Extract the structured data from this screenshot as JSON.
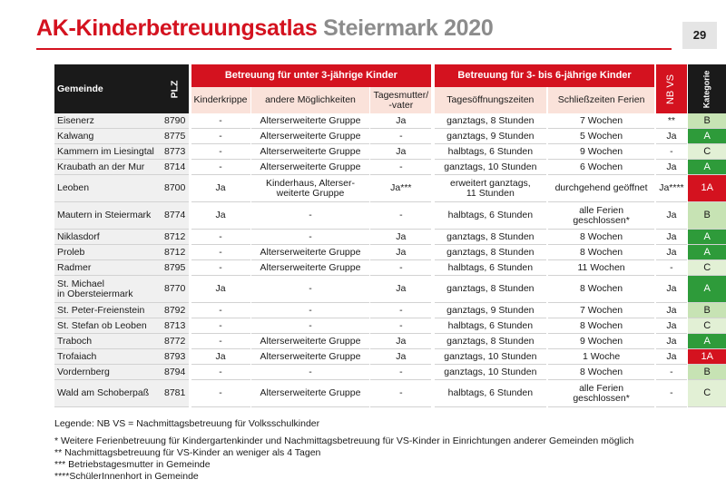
{
  "header": {
    "title_main": "AK-Kinderbetreuungsatlas",
    "title_sub": "Steiermark 2020",
    "page_number": "29"
  },
  "table": {
    "col_gemeinde": "Gemeinde",
    "col_plz": "PLZ",
    "group_under3": "Betreuung für unter 3-jährige Kinder",
    "group_3to6": "Betreuung für 3- bis 6-jährige Kinder",
    "col_nbvs": "NB VS",
    "col_kategorie": "Kategorie",
    "sub_kinderkrippe": "Kinderkrippe",
    "sub_andere": "andere Möglichkeiten",
    "sub_tagesmutter": "Tagesmutter/\n-vater",
    "sub_oeffnung": "Tagesöffnungszeiten",
    "sub_schliess": "Schließzeiten Ferien",
    "rows": [
      {
        "gemeinde": "Eisenerz",
        "plz": "8790",
        "krippe": "-",
        "andere": "Alterserweiterte Gruppe",
        "tages": "Ja",
        "oeffnung": "ganztags, 8 Stunden",
        "schliess": "7 Wochen",
        "nbvs": "**",
        "kat": "B"
      },
      {
        "gemeinde": "Kalwang",
        "plz": "8775",
        "krippe": "-",
        "andere": "Alterserweiterte Gruppe",
        "tages": "-",
        "oeffnung": "ganztags, 9 Stunden",
        "schliess": "5 Wochen",
        "nbvs": "Ja",
        "kat": "A"
      },
      {
        "gemeinde": "Kammern im Liesingtal",
        "plz": "8773",
        "krippe": "-",
        "andere": "Alterserweiterte Gruppe",
        "tages": "Ja",
        "oeffnung": "halbtags, 6 Stunden",
        "schliess": "9 Wochen",
        "nbvs": "-",
        "kat": "C"
      },
      {
        "gemeinde": "Kraubath an der Mur",
        "plz": "8714",
        "krippe": "-",
        "andere": "Alterserweiterte Gruppe",
        "tages": "-",
        "oeffnung": "ganztags, 10 Stunden",
        "schliess": "6 Wochen",
        "nbvs": "Ja",
        "kat": "A"
      },
      {
        "gemeinde": "Leoben",
        "plz": "8700",
        "krippe": "Ja",
        "andere": "Kinderhaus, Alterser-\nweiterte Gruppe",
        "tages": "Ja***",
        "oeffnung": "erweitert ganztags,\n11 Stunden",
        "schliess": "durchgehend geöffnet",
        "nbvs": "Ja****",
        "kat": "1A"
      },
      {
        "gemeinde": "Mautern in Steiermark",
        "plz": "8774",
        "krippe": "Ja",
        "andere": "-",
        "tages": "-",
        "oeffnung": "halbtags, 6 Stunden",
        "schliess": "alle Ferien\ngeschlossen*",
        "nbvs": "Ja",
        "kat": "B"
      },
      {
        "gemeinde": "Niklasdorf",
        "plz": "8712",
        "krippe": "-",
        "andere": "-",
        "tages": "Ja",
        "oeffnung": "ganztags, 8 Stunden",
        "schliess": "8 Wochen",
        "nbvs": "Ja",
        "kat": "A"
      },
      {
        "gemeinde": "Proleb",
        "plz": "8712",
        "krippe": "-",
        "andere": "Alterserweiterte Gruppe",
        "tages": "Ja",
        "oeffnung": "ganztags, 8 Stunden",
        "schliess": "8 Wochen",
        "nbvs": "Ja",
        "kat": "A"
      },
      {
        "gemeinde": "Radmer",
        "plz": "8795",
        "krippe": "-",
        "andere": "Alterserweiterte Gruppe",
        "tages": "-",
        "oeffnung": "halbtags, 6 Stunden",
        "schliess": "11 Wochen",
        "nbvs": "-",
        "kat": "C"
      },
      {
        "gemeinde": "St. Michael\nin Obersteiermark",
        "plz": "8770",
        "krippe": "Ja",
        "andere": "-",
        "tages": "Ja",
        "oeffnung": "ganztags, 8 Stunden",
        "schliess": "8 Wochen",
        "nbvs": "Ja",
        "kat": "A"
      },
      {
        "gemeinde": "St. Peter-Freienstein",
        "plz": "8792",
        "krippe": "-",
        "andere": "-",
        "tages": "-",
        "oeffnung": "ganztags, 9 Stunden",
        "schliess": "7 Wochen",
        "nbvs": "Ja",
        "kat": "B"
      },
      {
        "gemeinde": "St. Stefan ob Leoben",
        "plz": "8713",
        "krippe": "-",
        "andere": "-",
        "tages": "-",
        "oeffnung": "halbtags, 6 Stunden",
        "schliess": "8 Wochen",
        "nbvs": "Ja",
        "kat": "C"
      },
      {
        "gemeinde": "Traboch",
        "plz": "8772",
        "krippe": "-",
        "andere": "Alterserweiterte Gruppe",
        "tages": "Ja",
        "oeffnung": "ganztags, 8 Stunden",
        "schliess": "9 Wochen",
        "nbvs": "Ja",
        "kat": "A"
      },
      {
        "gemeinde": "Trofaiach",
        "plz": "8793",
        "krippe": "Ja",
        "andere": "Alterserweiterte Gruppe",
        "tages": "Ja",
        "oeffnung": "ganztags, 10 Stunden",
        "schliess": "1 Woche",
        "nbvs": "Ja",
        "kat": "1A"
      },
      {
        "gemeinde": "Vordernberg",
        "plz": "8794",
        "krippe": "-",
        "andere": "-",
        "tages": "-",
        "oeffnung": "ganztags, 10 Stunden",
        "schliess": "8 Wochen",
        "nbvs": "-",
        "kat": "B"
      },
      {
        "gemeinde": "Wald am Schoberpaß",
        "plz": "8781",
        "krippe": "-",
        "andere": "Alterserweiterte Gruppe",
        "tages": "-",
        "oeffnung": "halbtags, 6 Stunden",
        "schliess": "alle Ferien\ngeschlossen*",
        "nbvs": "-",
        "kat": "C"
      }
    ]
  },
  "legend": {
    "title": "Legende: NB VS = Nachmittagsbetreuung für Volksschulkinder",
    "notes": [
      "* Weitere Ferienbetreuung für Kindergartenkinder und Nachmittagsbetreuung für VS-Kinder in Einrichtungen anderer Gemeinden möglich",
      "** Nachmittagsbetreuung für VS-Kinder an weniger als 4 Tagen",
      "*** Betriebstagesmutter in Gemeinde",
      "****SchülerInnenhort in Gemeinde"
    ]
  },
  "colors": {
    "accent_red": "#d4121f",
    "title_grey": "#8c8c8c",
    "header_black": "#1a1a1a",
    "subheader_pink": "#fae2da",
    "kat_A": "#2e9b3a",
    "kat_B": "#c7e3b4",
    "kat_C": "#e2f0d5",
    "kat_1A": "#d4121f"
  }
}
